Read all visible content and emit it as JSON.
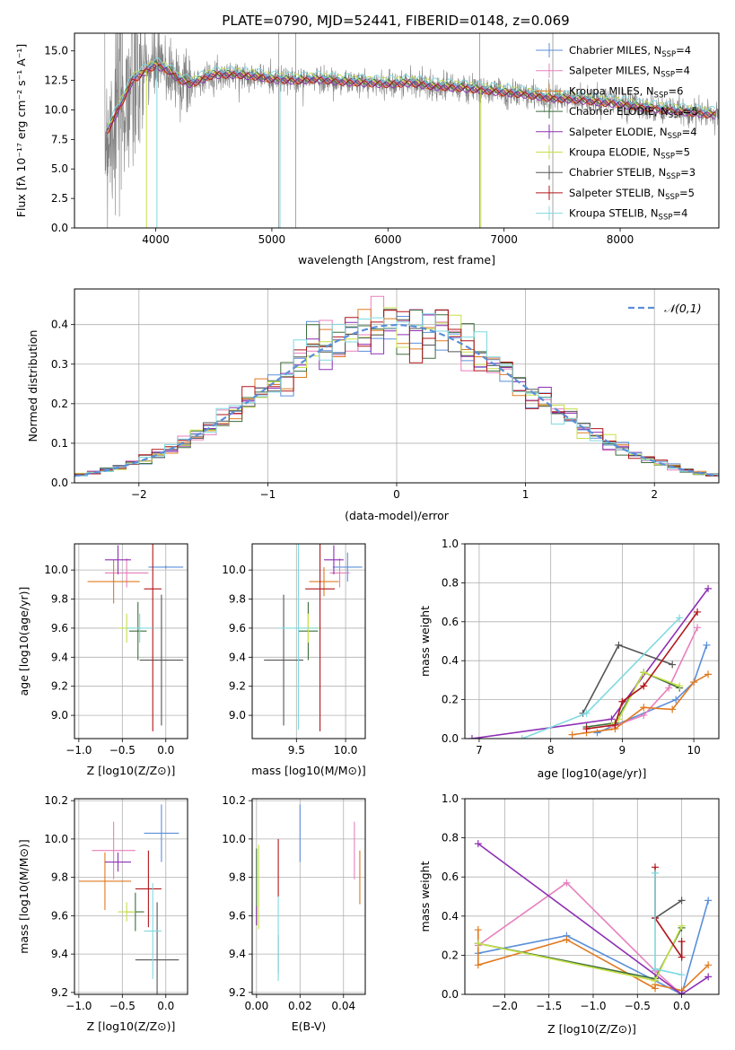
{
  "figure": {
    "title": "PLATE=0790, MJD=52441, FIBERID=0148, z=0.069"
  },
  "legend_entries": [
    {
      "name": "Chabrier MILES",
      "nssp": "4",
      "color": "#5b8fd9"
    },
    {
      "name": "Salpeter MILES",
      "nssp": "4",
      "color": "#e87fbd"
    },
    {
      "name": "Kroupa MILES",
      "nssp": "6",
      "color": "#e07a20"
    },
    {
      "name": "Chabrier ELODIE",
      "nssp": "5",
      "color": "#3c6e3c"
    },
    {
      "name": "Salpeter ELODIE",
      "nssp": "4",
      "color": "#8e2fb4"
    },
    {
      "name": "Kroupa ELODIE",
      "nssp": "5",
      "color": "#c5e049"
    },
    {
      "name": "Chabrier STELIB",
      "nssp": "3",
      "color": "#555555"
    },
    {
      "name": "Salpeter STELIB",
      "nssp": "5",
      "color": "#b0151a"
    },
    {
      "name": "Kroupa STELIB",
      "nssp": "4",
      "color": "#7fd9e0"
    }
  ],
  "chart_data": [
    {
      "id": "spectrum",
      "type": "line",
      "title": "PLATE=0790, MJD=52441, FIBERID=0148, z=0.069",
      "xlabel": "wavelength [Angstrom, rest frame]",
      "ylabel": "Flux [fλ 10⁻¹⁷ erg cm⁻² s⁻¹ A⁻¹]",
      "xlim": [
        3300,
        8850
      ],
      "ylim": [
        0,
        16.5
      ],
      "xticks": [
        4000,
        5000,
        6000,
        7000,
        8000
      ],
      "yticks": [
        0.0,
        2.5,
        5.0,
        7.5,
        10.0,
        12.5,
        15.0
      ],
      "grid": false,
      "legend": "upper-right",
      "data_continuum": {
        "x": [
          3560,
          3600,
          3700,
          3800,
          3900,
          4000,
          4100,
          4200,
          4300,
          4500,
          4700,
          4900,
          5000,
          5200,
          5400,
          5600,
          5800,
          6000,
          6200,
          6400,
          6600,
          6800,
          7000,
          7200,
          7400,
          7600,
          7800,
          8000,
          8200,
          8400,
          8600,
          8800
        ],
        "y": [
          8.0,
          8.5,
          10.5,
          12.5,
          13.2,
          13.8,
          13.4,
          12.6,
          12.2,
          13.0,
          13.0,
          12.8,
          12.6,
          12.5,
          12.6,
          12.4,
          12.3,
          12.2,
          12.3,
          12.0,
          11.9,
          11.7,
          11.5,
          11.3,
          11.0,
          10.9,
          10.7,
          10.5,
          10.2,
          10.0,
          9.8,
          9.6
        ]
      },
      "model_offsets": [
        0.0,
        0.05,
        -0.05,
        0.1,
        -0.1,
        0.3,
        0.08,
        -0.08,
        0.45
      ]
    },
    {
      "id": "residuals",
      "type": "histogram",
      "xlabel": "(data-model)/error",
      "ylabel": "Normed distribution",
      "xlim": [
        -2.5,
        2.5
      ],
      "ylim": [
        0,
        0.49
      ],
      "xticks": [
        -2,
        -1,
        0,
        1,
        2
      ],
      "yticks": [
        0.0,
        0.1,
        0.2,
        0.3,
        0.4
      ],
      "grid": true,
      "legend": "upper-right",
      "reference_curve": {
        "name": "𝒩(0,1)",
        "mean": 0,
        "sigma": 1
      },
      "bin_width": 0.1
    },
    {
      "id": "age-vs-Z",
      "type": "scatter",
      "xlabel": "Z [log10(Z/Z⊙)]",
      "ylabel": "age [log10(age/yr)]",
      "xlim": [
        -1.05,
        0.25
      ],
      "ylim": [
        8.84,
        10.18
      ],
      "xticks": [
        -1.0,
        -0.5,
        0.0
      ],
      "yticks": [
        9.0,
        9.2,
        9.4,
        9.6,
        9.8,
        10.0
      ],
      "grid": true,
      "points": [
        {
          "series": "Chabrier MILES",
          "x": 0.0,
          "y": 10.02,
          "xerr": 0.2,
          "yerr": 0.01
        },
        {
          "series": "Salpeter MILES",
          "x": -0.45,
          "y": 9.98,
          "xerr": 0.25,
          "yerr": 0.1
        },
        {
          "series": "Kroupa MILES",
          "x": -0.6,
          "y": 9.92,
          "xerr": 0.3,
          "yerr": 0.15
        },
        {
          "series": "Chabrier ELODIE",
          "x": -0.32,
          "y": 9.58,
          "xerr": 0.1,
          "yerr": 0.2
        },
        {
          "series": "Salpeter ELODIE",
          "x": -0.55,
          "y": 10.07,
          "xerr": 0.15,
          "yerr": 0.1
        },
        {
          "series": "Kroupa ELODIE",
          "x": -0.45,
          "y": 9.6,
          "xerr": 0.1,
          "yerr": 0.1
        },
        {
          "series": "Chabrier STELIB",
          "x": -0.05,
          "y": 9.38,
          "xerr": 0.25,
          "yerr": 0.45
        },
        {
          "series": "Salpeter STELIB",
          "x": -0.15,
          "y": 9.87,
          "xerr": 0.1,
          "yerr": 0.98
        },
        {
          "series": "Kroupa STELIB",
          "x": -0.3,
          "y": 9.6,
          "xerr": 0.15,
          "yerr": 0.1
        }
      ]
    },
    {
      "id": "age-vs-mass",
      "type": "scatter",
      "xlabel": "mass [log10(M/M⊙)]",
      "ylabel": "",
      "xlim": [
        9.05,
        10.2
      ],
      "ylim": [
        8.84,
        10.18
      ],
      "xticks": [
        9.5,
        10.0
      ],
      "yticks": [
        9.0,
        9.2,
        9.4,
        9.6,
        9.8,
        10.0
      ],
      "grid": true,
      "points": [
        {
          "series": "Chabrier MILES",
          "x": 10.02,
          "y": 10.02,
          "xerr": 0.15,
          "yerr": 0.1
        },
        {
          "series": "Salpeter MILES",
          "x": 9.94,
          "y": 9.98,
          "xerr": 0.1,
          "yerr": 0.1
        },
        {
          "series": "Kroupa MILES",
          "x": 9.78,
          "y": 9.92,
          "xerr": 0.15,
          "yerr": 0.1
        },
        {
          "series": "Chabrier ELODIE",
          "x": 9.62,
          "y": 9.58,
          "xerr": 0.1,
          "yerr": 0.2
        },
        {
          "series": "Salpeter ELODIE",
          "x": 9.88,
          "y": 10.07,
          "xerr": 0.1,
          "yerr": 0.1
        },
        {
          "series": "Kroupa ELODIE",
          "x": 9.62,
          "y": 9.6,
          "xerr": 0.12,
          "yerr": 0.1
        },
        {
          "series": "Chabrier STELIB",
          "x": 9.37,
          "y": 9.38,
          "xerr": 0.2,
          "yerr": 0.45
        },
        {
          "series": "Salpeter STELIB",
          "x": 9.74,
          "y": 9.87,
          "xerr": 0.15,
          "yerr": 0.98
        },
        {
          "series": "Kroupa STELIB",
          "x": 9.52,
          "y": 9.6,
          "xerr": 0.2,
          "yerr": 0.7
        }
      ]
    },
    {
      "id": "massweight-vs-age",
      "type": "line",
      "xlabel": "age [log10(age/yr)]",
      "ylabel": "mass weight",
      "xlim": [
        6.8,
        10.35
      ],
      "ylim": [
        0,
        1.0
      ],
      "xticks": [
        7,
        8,
        9,
        10
      ],
      "yticks": [
        0.0,
        0.2,
        0.4,
        0.6,
        0.8,
        1.0
      ],
      "grid": true,
      "series": [
        {
          "name": "Chabrier MILES",
          "x": [
            8.65,
            9.75,
            10.0,
            10.18
          ],
          "y": [
            0.03,
            0.2,
            0.29,
            0.48
          ]
        },
        {
          "name": "Salpeter MILES",
          "x": [
            8.85,
            9.3,
            9.65,
            10.05
          ],
          "y": [
            0.06,
            0.12,
            0.26,
            0.57
          ]
        },
        {
          "name": "Kroupa MILES",
          "x": [
            8.3,
            8.5,
            8.9,
            9.3,
            9.7,
            10.0,
            10.2
          ],
          "y": [
            0.02,
            0.03,
            0.05,
            0.16,
            0.15,
            0.29,
            0.33
          ]
        },
        {
          "name": "Chabrier ELODIE",
          "x": [
            8.5,
            8.9,
            9.3,
            9.8
          ],
          "y": [
            0.06,
            0.08,
            0.34,
            0.26
          ]
        },
        {
          "name": "Salpeter ELODIE",
          "x": [
            6.9,
            8.85,
            10.2
          ],
          "y": [
            0.0,
            0.1,
            0.77
          ]
        },
        {
          "name": "Kroupa ELODIE",
          "x": [
            8.85,
            8.95,
            9.3,
            9.8
          ],
          "y": [
            0.07,
            0.1,
            0.34,
            0.27
          ]
        },
        {
          "name": "Chabrier STELIB",
          "x": [
            8.45,
            8.95,
            9.7
          ],
          "y": [
            0.13,
            0.48,
            0.38
          ]
        },
        {
          "name": "Salpeter STELIB",
          "x": [
            8.5,
            8.9,
            9.0,
            9.3,
            10.05
          ],
          "y": [
            0.05,
            0.07,
            0.19,
            0.27,
            0.65
          ]
        },
        {
          "name": "Kroupa STELIB",
          "x": [
            7.6,
            8.5,
            9.8
          ],
          "y": [
            0.0,
            0.13,
            0.62
          ]
        }
      ]
    },
    {
      "id": "mass-vs-Z",
      "type": "scatter",
      "xlabel": "Z [log10(Z/Z⊙)]",
      "ylabel": "mass [log10(M/M⊙)]",
      "xlim": [
        -1.05,
        0.25
      ],
      "ylim": [
        9.19,
        10.21
      ],
      "xticks": [
        -1.0,
        -0.5,
        0.0
      ],
      "yticks": [
        9.2,
        9.4,
        9.6,
        9.8,
        10.0,
        10.2
      ],
      "grid": true,
      "points": [
        {
          "series": "Chabrier MILES",
          "x": -0.05,
          "y": 10.03,
          "xerr": 0.2,
          "yerr": 0.15
        },
        {
          "series": "Salpeter MILES",
          "x": -0.6,
          "y": 9.94,
          "xerr": 0.25,
          "yerr": 0.15
        },
        {
          "series": "Kroupa MILES",
          "x": -0.7,
          "y": 9.78,
          "xerr": 0.3,
          "yerr": 0.15
        },
        {
          "series": "Chabrier ELODIE",
          "x": -0.35,
          "y": 9.62,
          "xerr": 0.1,
          "yerr": 0.1
        },
        {
          "series": "Salpeter ELODIE",
          "x": -0.55,
          "y": 9.88,
          "xerr": 0.15,
          "yerr": 0.05
        },
        {
          "series": "Kroupa ELODIE",
          "x": -0.45,
          "y": 9.62,
          "xerr": 0.1,
          "yerr": 0.05
        },
        {
          "series": "Chabrier STELIB",
          "x": -0.1,
          "y": 9.37,
          "xerr": 0.25,
          "yerr": 0.3
        },
        {
          "series": "Salpeter STELIB",
          "x": -0.2,
          "y": 9.74,
          "xerr": 0.15,
          "yerr": 0.2
        },
        {
          "series": "Kroupa STELIB",
          "x": -0.15,
          "y": 9.52,
          "xerr": 0.1,
          "yerr": 0.25
        }
      ]
    },
    {
      "id": "mass-vs-ebv",
      "type": "scatter",
      "xlabel": "E(B-V)",
      "ylabel": "",
      "xlim": [
        -0.002,
        0.05
      ],
      "ylim": [
        9.19,
        10.21
      ],
      "xticks": [
        0.0,
        0.02,
        0.04
      ],
      "yticks": [
        9.2,
        9.4,
        9.6,
        9.8,
        10.0,
        10.2
      ],
      "grid": true,
      "points": [
        {
          "series": "Chabrier MILES",
          "x": 0.02,
          "y": 10.03,
          "xerr": 0.0,
          "yerr": 0.15
        },
        {
          "series": "Salpeter MILES",
          "x": 0.045,
          "y": 9.94,
          "xerr": 0.0,
          "yerr": 0.15
        },
        {
          "series": "Kroupa MILES",
          "x": 0.0475,
          "y": 9.8,
          "xerr": 0.0,
          "yerr": 0.14
        },
        {
          "series": "Chabrier ELODIE",
          "x": 0.0,
          "y": 9.75,
          "xerr": 0.0,
          "yerr": 0.2
        },
        {
          "series": "Salpeter ELODIE",
          "x": 0.0,
          "y": 9.6,
          "xerr": 0.0,
          "yerr": 0.05
        },
        {
          "series": "Kroupa ELODIE",
          "x": 0.001,
          "y": 9.75,
          "xerr": 0.0,
          "yerr": 0.22
        },
        {
          "series": "Chabrier STELIB",
          "x": 0.01,
          "y": 9.4,
          "xerr": 0.0,
          "yerr": 0.1
        },
        {
          "series": "Salpeter STELIB",
          "x": 0.01,
          "y": 9.85,
          "xerr": 0.0,
          "yerr": 0.15
        },
        {
          "series": "Kroupa STELIB",
          "x": 0.01,
          "y": 9.48,
          "xerr": 0.0,
          "yerr": 0.22
        }
      ]
    },
    {
      "id": "massweight-vs-Z",
      "type": "line",
      "xlabel": "Z [log10(Z/Z⊙)]",
      "ylabel": "mass weight",
      "xlim": [
        -2.45,
        0.42
      ],
      "ylim": [
        0,
        1.0
      ],
      "xticks": [
        -2.0,
        -1.5,
        -1.0,
        -0.5,
        0.0
      ],
      "yticks": [
        0.0,
        0.2,
        0.4,
        0.6,
        0.8,
        1.0
      ],
      "grid": true,
      "series": [
        {
          "name": "Chabrier MILES",
          "x": [
            -2.3,
            -1.3,
            -0.3,
            0.0,
            0.3
          ],
          "y": [
            0.21,
            0.3,
            0.07,
            0.0,
            0.48
          ]
        },
        {
          "name": "Salpeter MILES",
          "x": [
            -2.3,
            -1.3,
            -0.3,
            0.0
          ],
          "y": [
            0.25,
            0.57,
            0.12,
            0.0
          ]
        },
        {
          "name": "Kroupa MILES",
          "x": [
            -2.3,
            -2.3,
            -1.3,
            -0.3,
            -0.3,
            0.0,
            0.3
          ],
          "y": [
            0.33,
            0.15,
            0.28,
            0.03,
            0.05,
            0.02,
            0.15
          ]
        },
        {
          "name": "Chabrier ELODIE",
          "x": [
            -2.3,
            -0.3,
            0.0
          ],
          "y": [
            0.26,
            0.08,
            0.34
          ]
        },
        {
          "name": "Salpeter ELODIE",
          "x": [
            -2.3,
            0.0,
            0.3
          ],
          "y": [
            0.77,
            0.0,
            0.09
          ]
        },
        {
          "name": "Kroupa ELODIE",
          "x": [
            -2.3,
            -0.3,
            0.0
          ],
          "y": [
            0.26,
            0.07,
            0.35
          ]
        },
        {
          "name": "Chabrier STELIB",
          "x": [
            -0.3,
            0.0
          ],
          "y": [
            0.39,
            0.48
          ]
        },
        {
          "name": "Salpeter STELIB",
          "x": [
            -0.3,
            -0.3,
            0.0,
            0.0
          ],
          "y": [
            0.65,
            0.39,
            0.19,
            0.27
          ]
        },
        {
          "name": "Kroupa STELIB",
          "x": [
            -0.3,
            -0.3,
            0.0
          ],
          "y": [
            0.62,
            0.13,
            0.1
          ]
        }
      ]
    }
  ]
}
